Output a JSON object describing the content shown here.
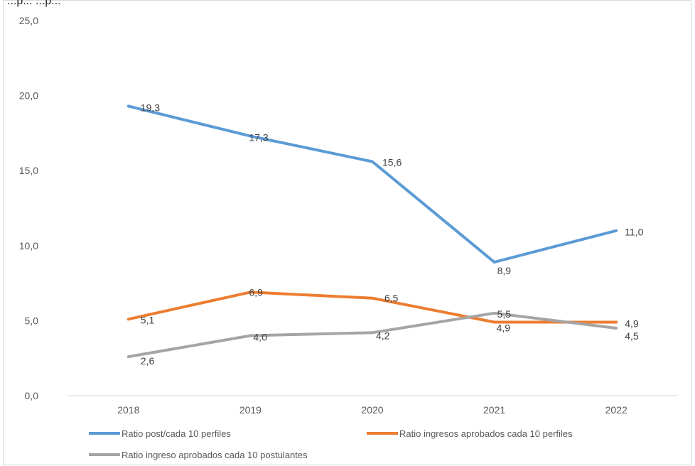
{
  "header_text": "...p... ...p...",
  "chart_data": {
    "type": "line",
    "categories": [
      "2018",
      "2019",
      "2020",
      "2021",
      "2022"
    ],
    "ylim": [
      0,
      25
    ],
    "yticks": [
      "0,0",
      "5,0",
      "10,0",
      "15,0",
      "20,0",
      "25,0"
    ],
    "ytick_values": [
      0,
      5,
      10,
      15,
      20,
      25
    ],
    "grid": false,
    "legend_position": "bottom",
    "title": "",
    "xlabel": "",
    "ylabel": "",
    "series": [
      {
        "name": "Ratio post/cada 10 perfiles",
        "color": "#5B9BD5",
        "values": [
          19.3,
          17.3,
          15.6,
          8.9,
          11.0
        ],
        "labels": [
          "19,3",
          "17,3",
          "15,6",
          "8,9",
          "11,0"
        ]
      },
      {
        "name": "Ratio ingresos aprobados cada 10 perfiles",
        "color": "#ED7D31",
        "values": [
          5.1,
          6.9,
          6.5,
          4.9,
          4.9
        ],
        "labels": [
          "5,1",
          "6,9",
          "6,5",
          "4,9",
          "4,9"
        ]
      },
      {
        "name": "Ratio ingreso aprobados cada  10 postulantes",
        "color": "#A5A5A5",
        "values": [
          2.6,
          4.0,
          4.2,
          5.5,
          4.5
        ],
        "labels": [
          "2,6",
          "4,0",
          "4,2",
          "5,5",
          "4,5"
        ]
      }
    ]
  }
}
